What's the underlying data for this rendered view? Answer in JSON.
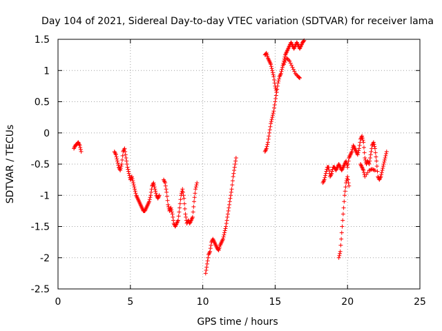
{
  "chart_data": {
    "type": "scatter",
    "title": "Day 104 of 2021, Sidereal Day-to-day VTEC variation (SDTVAR) for receiver lama",
    "xlabel": "GPS time / hours",
    "ylabel": "SDTVAR / TECUs",
    "xlim": [
      0,
      25
    ],
    "ylim": [
      -2.5,
      1.5
    ],
    "xticks": [
      0,
      5,
      10,
      15,
      20,
      25
    ],
    "xtick_labels": [
      "0",
      "5",
      "10",
      "15",
      "20",
      "25"
    ],
    "yticks": [
      -2.5,
      -2,
      -1.5,
      -1,
      -0.5,
      0,
      0.5,
      1,
      1.5
    ],
    "ytick_labels": [
      "-2.5",
      "-2",
      "-1.5",
      "-1",
      "-0.5",
      "0",
      "0.5",
      "1",
      "1.5"
    ],
    "grid": true,
    "marker": "+",
    "color": "#ff0000",
    "series": [
      {
        "name": "SDTVAR",
        "segments": [
          [
            [
              1.1,
              -0.25
            ],
            [
              1.2,
              -0.2
            ],
            [
              1.3,
              -0.18
            ],
            [
              1.4,
              -0.15
            ],
            [
              1.5,
              -0.2
            ],
            [
              1.6,
              -0.3
            ]
          ],
          [
            [
              3.9,
              -0.3
            ],
            [
              4.0,
              -0.35
            ],
            [
              4.1,
              -0.45
            ],
            [
              4.2,
              -0.55
            ],
            [
              4.3,
              -0.6
            ],
            [
              4.4,
              -0.5
            ],
            [
              4.5,
              -0.3
            ],
            [
              4.6,
              -0.25
            ],
            [
              4.7,
              -0.4
            ],
            [
              4.8,
              -0.55
            ],
            [
              4.9,
              -0.65
            ],
            [
              5.0,
              -0.75
            ],
            [
              5.1,
              -0.7
            ],
            [
              5.2,
              -0.8
            ],
            [
              5.3,
              -0.9
            ],
            [
              5.4,
              -1.0
            ],
            [
              5.5,
              -1.05
            ],
            [
              5.6,
              -1.1
            ],
            [
              5.7,
              -1.15
            ],
            [
              5.8,
              -1.2
            ],
            [
              5.9,
              -1.25
            ],
            [
              6.0,
              -1.25
            ],
            [
              6.1,
              -1.2
            ],
            [
              6.2,
              -1.15
            ],
            [
              6.3,
              -1.1
            ],
            [
              6.4,
              -1.0
            ],
            [
              6.5,
              -0.85
            ],
            [
              6.6,
              -0.8
            ],
            [
              6.7,
              -0.9
            ],
            [
              6.8,
              -1.0
            ],
            [
              6.9,
              -1.05
            ],
            [
              7.0,
              -1.0
            ]
          ],
          [
            [
              7.3,
              -0.75
            ],
            [
              7.4,
              -0.8
            ],
            [
              7.5,
              -0.95
            ],
            [
              7.6,
              -1.15
            ],
            [
              7.7,
              -1.25
            ],
            [
              7.8,
              -1.2
            ],
            [
              7.9,
              -1.3
            ],
            [
              8.0,
              -1.45
            ],
            [
              8.1,
              -1.5
            ],
            [
              8.2,
              -1.45
            ],
            [
              8.3,
              -1.4
            ],
            [
              8.4,
              -1.2
            ],
            [
              8.5,
              -1.0
            ],
            [
              8.6,
              -0.9
            ],
            [
              8.7,
              -1.05
            ],
            [
              8.8,
              -1.3
            ],
            [
              8.9,
              -1.45
            ],
            [
              9.0,
              -1.4
            ],
            [
              9.1,
              -1.45
            ],
            [
              9.2,
              -1.4
            ],
            [
              9.3,
              -1.35
            ],
            [
              9.4,
              -1.1
            ],
            [
              9.5,
              -0.9
            ],
            [
              9.6,
              -0.8
            ]
          ],
          [
            [
              10.2,
              -2.25
            ],
            [
              10.3,
              -2.1
            ],
            [
              10.4,
              -1.95
            ],
            [
              10.5,
              -1.9
            ],
            [
              10.6,
              -1.75
            ],
            [
              10.7,
              -1.7
            ],
            [
              10.8,
              -1.75
            ],
            [
              10.9,
              -1.8
            ],
            [
              11.0,
              -1.85
            ],
            [
              11.1,
              -1.88
            ],
            [
              11.2,
              -1.8
            ],
            [
              11.3,
              -1.75
            ],
            [
              11.4,
              -1.7
            ],
            [
              11.5,
              -1.6
            ],
            [
              11.6,
              -1.5
            ],
            [
              11.7,
              -1.35
            ],
            [
              11.8,
              -1.2
            ],
            [
              11.9,
              -1.05
            ],
            [
              12.0,
              -0.9
            ],
            [
              12.1,
              -0.7
            ],
            [
              12.2,
              -0.55
            ],
            [
              12.3,
              -0.4
            ]
          ],
          [
            [
              14.3,
              -0.3
            ],
            [
              14.4,
              -0.25
            ],
            [
              14.5,
              -0.15
            ],
            [
              14.6,
              0.0
            ],
            [
              14.7,
              0.15
            ],
            [
              14.8,
              0.25
            ],
            [
              14.9,
              0.35
            ],
            [
              15.0,
              0.5
            ],
            [
              15.1,
              0.65
            ],
            [
              15.2,
              0.8
            ],
            [
              15.3,
              0.9
            ],
            [
              15.4,
              0.95
            ],
            [
              15.5,
              1.05
            ],
            [
              15.6,
              1.15
            ],
            [
              15.7,
              1.25
            ],
            [
              15.8,
              1.3
            ],
            [
              15.9,
              1.35
            ],
            [
              16.0,
              1.4
            ],
            [
              16.1,
              1.45
            ],
            [
              16.2,
              1.4
            ],
            [
              16.3,
              1.35
            ],
            [
              16.4,
              1.4
            ],
            [
              16.5,
              1.45
            ],
            [
              16.6,
              1.4
            ],
            [
              16.7,
              1.35
            ],
            [
              16.8,
              1.4
            ],
            [
              16.9,
              1.45
            ],
            [
              17.0,
              1.48
            ]
          ],
          [
            [
              14.3,
              1.25
            ],
            [
              14.4,
              1.28
            ],
            [
              14.5,
              1.2
            ],
            [
              14.6,
              1.15
            ],
            [
              14.7,
              1.1
            ],
            [
              14.8,
              1.0
            ],
            [
              14.9,
              0.9
            ],
            [
              15.0,
              0.75
            ],
            [
              15.1,
              0.65
            ]
          ],
          [
            [
              15.6,
              1.1
            ],
            [
              15.8,
              1.2
            ],
            [
              16.0,
              1.15
            ],
            [
              16.2,
              1.05
            ],
            [
              16.4,
              0.95
            ],
            [
              16.6,
              0.9
            ],
            [
              16.7,
              0.88
            ]
          ],
          [
            [
              18.3,
              -0.8
            ],
            [
              18.4,
              -0.75
            ],
            [
              18.5,
              -0.65
            ],
            [
              18.6,
              -0.55
            ],
            [
              18.7,
              -0.55
            ],
            [
              18.8,
              -0.7
            ],
            [
              18.9,
              -0.65
            ],
            [
              19.0,
              -0.55
            ],
            [
              19.1,
              -0.55
            ],
            [
              19.2,
              -0.6
            ],
            [
              19.3,
              -0.55
            ],
            [
              19.4,
              -0.5
            ],
            [
              19.5,
              -0.55
            ],
            [
              19.6,
              -0.6
            ],
            [
              19.7,
              -0.55
            ],
            [
              19.8,
              -0.5
            ],
            [
              19.9,
              -0.45
            ],
            [
              20.0,
              -0.55
            ],
            [
              20.1,
              -0.4
            ],
            [
              20.2,
              -0.35
            ],
            [
              20.3,
              -0.3
            ],
            [
              20.4,
              -0.2
            ],
            [
              20.5,
              -0.25
            ],
            [
              20.6,
              -0.3
            ],
            [
              20.7,
              -0.35
            ],
            [
              20.8,
              -0.25
            ],
            [
              20.9,
              -0.1
            ],
            [
              21.0,
              -0.05
            ],
            [
              21.1,
              -0.15
            ],
            [
              21.2,
              -0.4
            ],
            [
              21.3,
              -0.5
            ],
            [
              21.4,
              -0.45
            ],
            [
              21.5,
              -0.5
            ],
            [
              21.6,
              -0.35
            ],
            [
              21.7,
              -0.2
            ],
            [
              21.8,
              -0.15
            ],
            [
              21.9,
              -0.25
            ],
            [
              22.0,
              -0.45
            ],
            [
              22.1,
              -0.7
            ],
            [
              22.2,
              -0.75
            ],
            [
              22.3,
              -0.7
            ],
            [
              22.4,
              -0.6
            ],
            [
              22.5,
              -0.5
            ],
            [
              22.6,
              -0.4
            ],
            [
              22.7,
              -0.3
            ]
          ],
          [
            [
              19.4,
              -2.0
            ],
            [
              19.5,
              -1.9
            ],
            [
              19.6,
              -1.6
            ],
            [
              19.7,
              -1.3
            ],
            [
              19.8,
              -1.0
            ],
            [
              19.9,
              -0.8
            ],
            [
              20.0,
              -0.7
            ],
            [
              20.1,
              -0.85
            ]
          ],
          [
            [
              20.9,
              -0.5
            ],
            [
              21.0,
              -0.55
            ],
            [
              21.1,
              -0.6
            ],
            [
              21.2,
              -0.7
            ],
            [
              21.5,
              -0.6
            ],
            [
              21.7,
              -0.58
            ],
            [
              21.9,
              -0.6
            ]
          ]
        ]
      }
    ]
  }
}
